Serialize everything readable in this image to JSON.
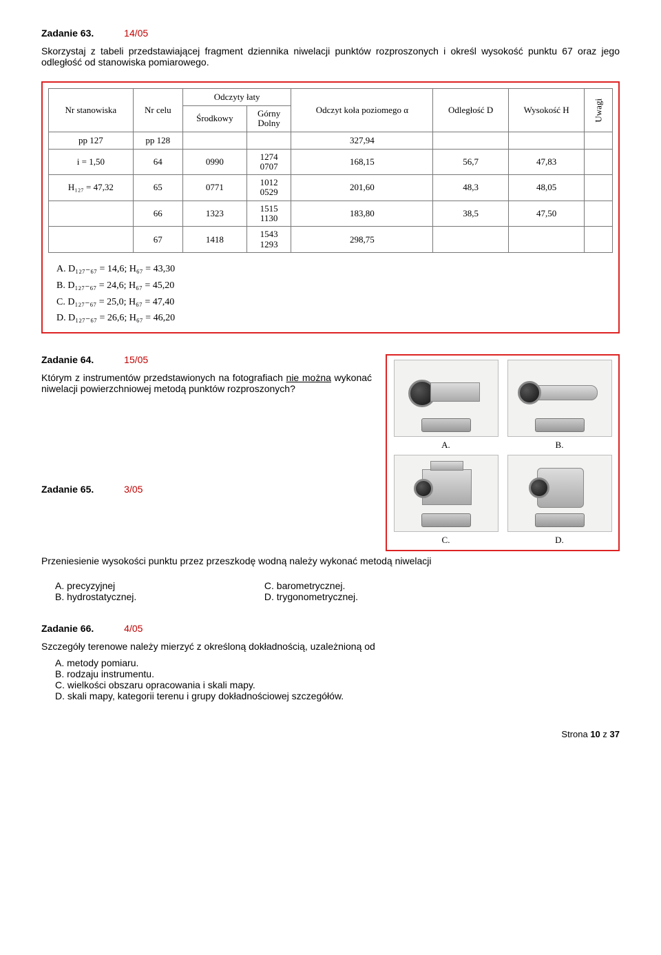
{
  "task63": {
    "header_num": "Zadanie 63.",
    "header_code": "14/05",
    "body": "Skorzystaj z tabeli przedstawiającej fragment dziennika niwelacji punktów rozproszonych i określ wysokość punktu 67 oraz jego odległość od stanowiska pomiarowego.",
    "table": {
      "head_r1": [
        "Nr stanowiska",
        "Nr celu",
        "Odczyty łaty",
        "Odczyt koła poziomego  α",
        "Odległość D",
        "Wysokość H",
        "Uwagi"
      ],
      "head_r2": [
        "Środkowy",
        "Górny\nDolny"
      ],
      "rows": [
        [
          "pp 127",
          "pp 128",
          "",
          "",
          "327,94",
          "",
          "",
          ""
        ],
        [
          "i = 1,50",
          "64",
          "0990",
          "1274\n0707",
          "168,15",
          "56,7",
          "47,83",
          ""
        ],
        [
          "H₁₂₇ = 47,32",
          "65",
          "0771",
          "1012\n0529",
          "201,60",
          "48,3",
          "48,05",
          ""
        ],
        [
          "",
          "66",
          "1323",
          "1515\n1130",
          "183,80",
          "38,5",
          "47,50",
          ""
        ],
        [
          "",
          "67",
          "1418",
          "1543\n1293",
          "298,75",
          "",
          "",
          ""
        ]
      ]
    },
    "answers": [
      "A.  D₁₂₇₋₆₇ = 14,6;   H₆₇ = 43,30",
      "B.  D₁₂₇₋₆₇ = 24,6;   H₆₇ = 45,20",
      "C.  D₁₂₇₋₆₇ = 25,0;   H₆₇ = 47,40",
      "D.  D₁₂₇₋₆₇ = 26,6;   H₆₇ = 46,20"
    ]
  },
  "task64": {
    "header_num": "Zadanie 64.",
    "header_code": "15/05",
    "body_pre": "Którym z instrumentów przedstawionych na fotografiach ",
    "body_underline": "nie można",
    "body_post": " wykonać niwelacji powierzchniowej metodą punktów rozproszonych?",
    "inst_labels": [
      "A.",
      "B.",
      "C.",
      "D."
    ]
  },
  "task65": {
    "header_num": "Zadanie 65.",
    "header_code": "3/05",
    "body": "Przeniesienie wysokości punktu przez przeszkodę wodną należy wykonać metodą niwelacji",
    "opts_left": [
      "A.  precyzyjnej",
      "B.  hydrostatycznej."
    ],
    "opts_right": [
      "C.  barometrycznej.",
      "D.  trygonometrycznej."
    ]
  },
  "task66": {
    "header_num": "Zadanie 66.",
    "header_code": "4/05",
    "body": "Szczegóły terenowe należy mierzyć z określoną dokładnością, uzależnioną od",
    "opts": [
      "A.  metody pomiaru.",
      "B.  rodzaju instrumentu.",
      "C.  wielkości obszaru opracowania i skali mapy.",
      "D.  skali mapy, kategorii terenu i grupy dokładnościowej szczegółów."
    ]
  },
  "footer": "Strona 10 z 37"
}
